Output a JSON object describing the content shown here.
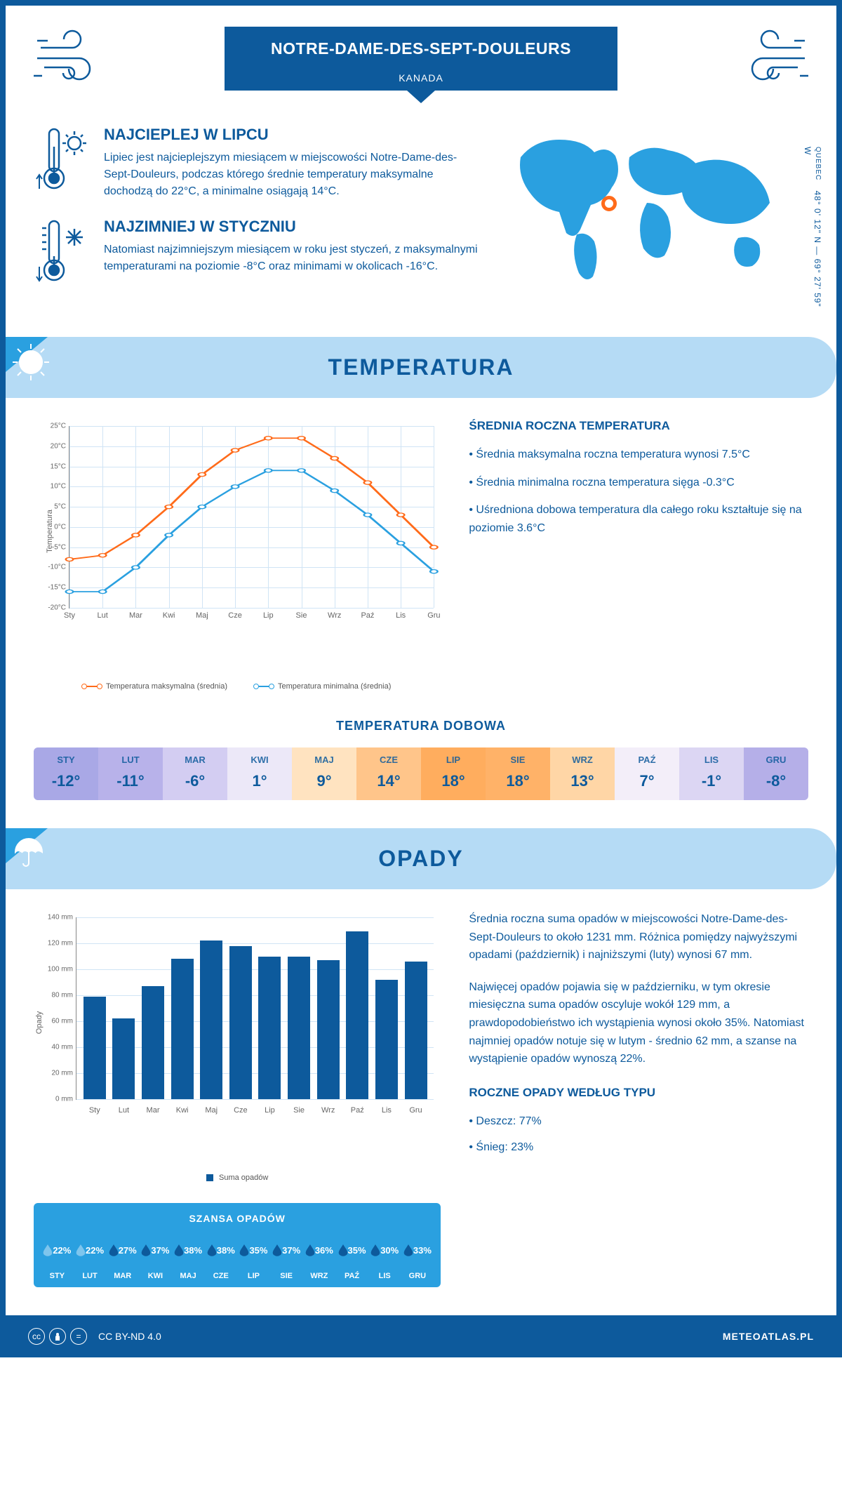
{
  "header": {
    "city": "NOTRE-DAME-DES-SEPT-DOULEURS",
    "country": "KANADA",
    "region": "QUEBEC",
    "coords": "48° 0' 12\" N — 69° 27' 59\" W"
  },
  "intro": {
    "hot": {
      "title": "NAJCIEPLEJ W LIPCU",
      "text": "Lipiec jest najcieplejszym miesiącem w miejscowości Notre-Dame-des-Sept-Douleurs, podczas którego średnie temperatury maksymalne dochodzą do 22°C, a minimalne osiągają 14°C."
    },
    "cold": {
      "title": "NAJZIMNIEJ W STYCZNIU",
      "text": "Natomiast najzimniejszym miesiącem w roku jest styczeń, z maksymalnymi temperaturami na poziomie -8°C oraz minimami w okolicach -16°C."
    }
  },
  "temperature": {
    "banner": "TEMPERATURA",
    "y_label": "Temperatura",
    "y_min": -20,
    "y_max": 25,
    "y_step": 5,
    "months": [
      "Sty",
      "Lut",
      "Mar",
      "Kwi",
      "Maj",
      "Cze",
      "Lip",
      "Sie",
      "Wrz",
      "Paź",
      "Lis",
      "Gru"
    ],
    "series": {
      "max": {
        "label": "Temperatura maksymalna (średnia)",
        "color": "#ff6b1a",
        "values": [
          -8,
          -7,
          -2,
          5,
          13,
          19,
          22,
          22,
          17,
          11,
          3,
          -5
        ]
      },
      "min": {
        "label": "Temperatura minimalna (średnia)",
        "color": "#2aa0e0",
        "values": [
          -16,
          -16,
          -10,
          -2,
          5,
          10,
          14,
          14,
          9,
          3,
          -4,
          -11
        ]
      }
    },
    "side": {
      "title": "ŚREDNIA ROCZNA TEMPERATURA",
      "bullets": [
        "• Średnia maksymalna roczna temperatura wynosi 7.5°C",
        "• Średnia minimalna roczna temperatura sięga -0.3°C",
        "• Uśredniona dobowa temperatura dla całego roku kształtuje się na poziomie 3.6°C"
      ]
    },
    "daily": {
      "title": "TEMPERATURA DOBOWA",
      "months": [
        "STY",
        "LUT",
        "MAR",
        "KWI",
        "MAJ",
        "CZE",
        "LIP",
        "SIE",
        "WRZ",
        "PAŹ",
        "LIS",
        "GRU"
      ],
      "values": [
        "-12°",
        "-11°",
        "-6°",
        "1°",
        "9°",
        "14°",
        "18°",
        "18°",
        "13°",
        "7°",
        "-1°",
        "-8°"
      ],
      "colors": [
        "#a9a8e6",
        "#b8b2ea",
        "#d3cdf2",
        "#ece8f8",
        "#ffe3c0",
        "#ffc58a",
        "#ffad5e",
        "#ffb268",
        "#ffd6a6",
        "#f3eef9",
        "#dcd6f3",
        "#b5afe8"
      ]
    }
  },
  "precip": {
    "banner": "OPADY",
    "y_label": "Opady",
    "y_max": 140,
    "y_step": 20,
    "unit": "mm",
    "months": [
      "Sty",
      "Lut",
      "Mar",
      "Kwi",
      "Maj",
      "Cze",
      "Lip",
      "Sie",
      "Wrz",
      "Paź",
      "Lis",
      "Gru"
    ],
    "values": [
      79,
      62,
      87,
      108,
      122,
      118,
      110,
      110,
      107,
      129,
      92,
      106
    ],
    "bar_color": "#0d5a9c",
    "legend": "Suma opadów",
    "text1": "Średnia roczna suma opadów w miejscowości Notre-Dame-des-Sept-Douleurs to około 1231 mm. Różnica pomiędzy najwyższymi opadami (październik) i najniższymi (luty) wynosi 67 mm.",
    "text2": "Najwięcej opadów pojawia się w październiku, w tym okresie miesięczna suma opadów oscyluje wokół 129 mm, a prawdopodobieństwo ich wystąpienia wynosi około 35%. Natomiast najmniej opadów notuje się w lutym - średnio 62 mm, a szanse na wystąpienie opadów wynoszą 22%.",
    "byType": {
      "title": "ROCZNE OPADY WEDŁUG TYPU",
      "items": [
        "• Deszcz: 77%",
        "• Śnieg: 23%"
      ]
    },
    "chance": {
      "title": "SZANSA OPADÓW",
      "months": [
        "STY",
        "LUT",
        "MAR",
        "KWI",
        "MAJ",
        "CZE",
        "LIP",
        "SIE",
        "WRZ",
        "PAŹ",
        "LIS",
        "GRU"
      ],
      "pct": [
        "22%",
        "22%",
        "27%",
        "37%",
        "38%",
        "38%",
        "35%",
        "37%",
        "36%",
        "35%",
        "30%",
        "33%"
      ],
      "colors": [
        "#7ec5ed",
        "#7ec5ed",
        "#0d5a9c",
        "#0d5a9c",
        "#0d5a9c",
        "#0d5a9c",
        "#0d5a9c",
        "#0d5a9c",
        "#0d5a9c",
        "#0d5a9c",
        "#0d5a9c",
        "#0d5a9c"
      ]
    }
  },
  "footer": {
    "license": "CC BY-ND 4.0",
    "logo": "METEOATLAS.PL"
  }
}
